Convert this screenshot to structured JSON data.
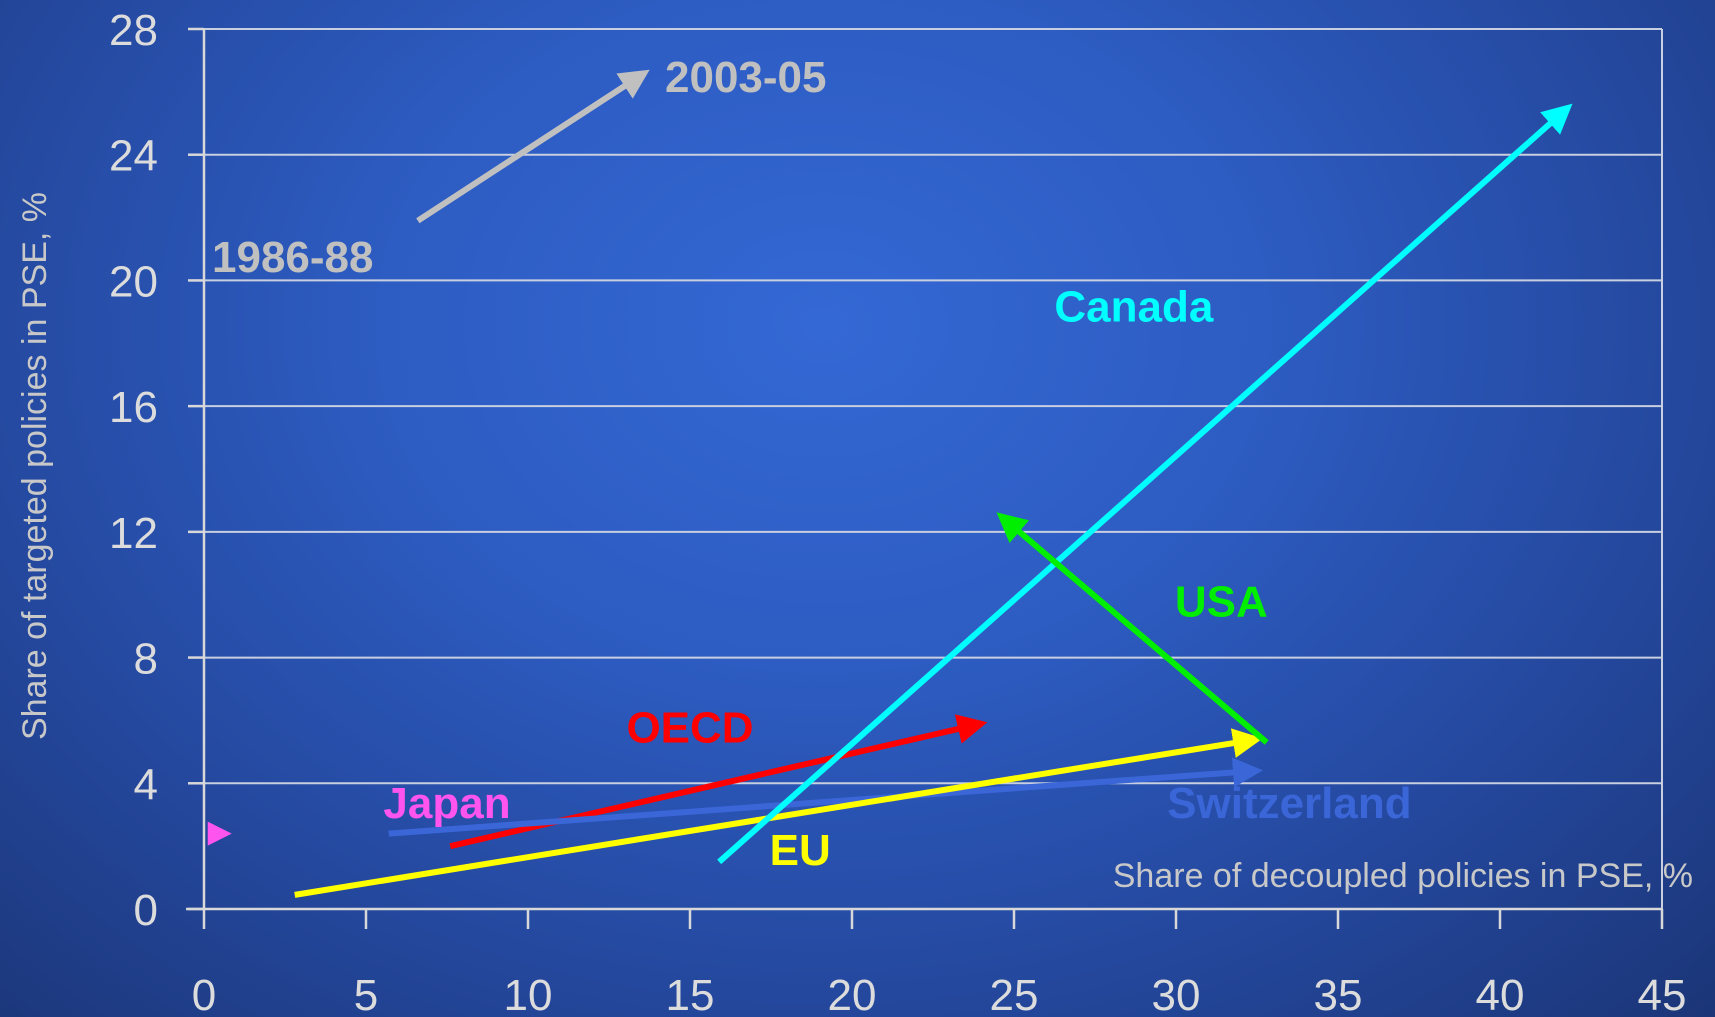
{
  "chart_data": {
    "type": "line",
    "title": "",
    "xlabel": "Share of decoupled policies in PSE, %",
    "ylabel": "Share of targeted policies in PSE, %",
    "xlim": [
      0,
      45
    ],
    "ylim": [
      0,
      28
    ],
    "x_ticks": [
      0,
      5,
      10,
      15,
      20,
      25,
      30,
      35,
      40,
      45
    ],
    "y_ticks": [
      0,
      4,
      8,
      12,
      16,
      20,
      24,
      28
    ],
    "grid": true,
    "legend": {
      "start_label": "1986-88",
      "end_label": "2003-05",
      "arrow": {
        "from": [
          6.6,
          21.9
        ],
        "to": [
          13.6,
          26.6
        ]
      },
      "color": "#c0c0c0"
    },
    "series": [
      {
        "name": "Japan",
        "color": "#ff55ee",
        "start": [
          0.3,
          2.4
        ],
        "end": [
          0.3,
          2.4
        ],
        "label_pos": [
          7.5,
          2.9
        ]
      },
      {
        "name": "OECD",
        "color": "#ff0000",
        "start": [
          7.6,
          2.0
        ],
        "end": [
          24.0,
          5.9
        ],
        "label_pos": [
          15.0,
          5.3
        ]
      },
      {
        "name": "Switzerland",
        "color": "#3b66d8",
        "start": [
          5.7,
          2.4
        ],
        "end": [
          32.5,
          4.4
        ],
        "label_pos": [
          33.5,
          2.9
        ]
      },
      {
        "name": "EU",
        "color": "#ffff00",
        "start": [
          2.8,
          0.45
        ],
        "end": [
          32.5,
          5.4
        ],
        "label_pos": [
          18.4,
          1.4
        ]
      },
      {
        "name": "Canada",
        "color": "#00ffff",
        "start": [
          15.9,
          1.5
        ],
        "end": [
          42.1,
          25.5
        ],
        "label_pos": [
          28.7,
          18.7
        ]
      },
      {
        "name": "USA",
        "color": "#00ee00",
        "start": [
          32.8,
          5.3
        ],
        "end": [
          24.6,
          12.5
        ],
        "label_pos": [
          31.4,
          9.3
        ]
      }
    ]
  }
}
